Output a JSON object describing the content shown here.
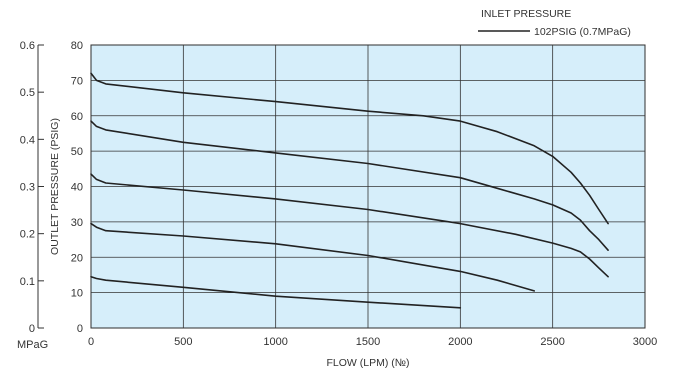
{
  "chart_data": {
    "type": "line",
    "xlabel": "FLOW (LPM) (№)",
    "ylabel": "OUTLET PRESSURE (PSIG)",
    "secondary_axis": {
      "unit": "MPaG",
      "ticks": [
        "0",
        "0.1",
        "0.2",
        "0.3",
        "0.4",
        "0.5",
        "0.6"
      ],
      "ylim": [
        0,
        0.6
      ]
    },
    "xlim": [
      0,
      3000
    ],
    "ylim": [
      0,
      80
    ],
    "x_ticks": [
      "0",
      "500",
      "1000",
      "1500",
      "2000",
      "2500",
      "3000"
    ],
    "y_ticks": [
      "0",
      "10",
      "20",
      "30",
      "40",
      "50",
      "60",
      "70",
      "80"
    ],
    "grid": true,
    "background_color": "#d6eefa",
    "line_color": "#222222",
    "legend": {
      "title": "INLET PRESSURE",
      "entries": [
        "102PSIG (0.7MPaG)"
      ],
      "position": "top-right"
    },
    "series": [
      {
        "points": [
          [
            0,
            72
          ],
          [
            30,
            70
          ],
          [
            80,
            69
          ],
          [
            500,
            66.5
          ],
          [
            1000,
            64
          ],
          [
            1500,
            61.3
          ],
          [
            1800,
            60
          ],
          [
            2000,
            58.5
          ],
          [
            2200,
            55.5
          ],
          [
            2400,
            51.5
          ],
          [
            2500,
            48.5
          ],
          [
            2600,
            44
          ],
          [
            2650,
            41
          ],
          [
            2700,
            37.5
          ],
          [
            2750,
            33.5
          ],
          [
            2800,
            29.5
          ]
        ]
      },
      {
        "points": [
          [
            0,
            58.5
          ],
          [
            30,
            57
          ],
          [
            80,
            56
          ],
          [
            500,
            52.5
          ],
          [
            1000,
            49.5
          ],
          [
            1500,
            46.5
          ],
          [
            2000,
            42.5
          ],
          [
            2200,
            39.5
          ],
          [
            2400,
            36.5
          ],
          [
            2500,
            34.8
          ],
          [
            2600,
            32.5
          ],
          [
            2650,
            30.5
          ],
          [
            2700,
            27.5
          ],
          [
            2750,
            25
          ],
          [
            2800,
            22
          ]
        ]
      },
      {
        "points": [
          [
            0,
            43.5
          ],
          [
            30,
            42
          ],
          [
            80,
            41
          ],
          [
            500,
            39
          ],
          [
            1000,
            36.5
          ],
          [
            1500,
            33.5
          ],
          [
            2000,
            29.5
          ],
          [
            2300,
            26.5
          ],
          [
            2500,
            24
          ],
          [
            2600,
            22.5
          ],
          [
            2650,
            21.5
          ],
          [
            2700,
            19.5
          ],
          [
            2750,
            17
          ],
          [
            2800,
            14.5
          ]
        ]
      },
      {
        "points": [
          [
            0,
            29.5
          ],
          [
            30,
            28.5
          ],
          [
            80,
            27.5
          ],
          [
            500,
            26
          ],
          [
            1000,
            23.8
          ],
          [
            1500,
            20.5
          ],
          [
            2000,
            16
          ],
          [
            2200,
            13.5
          ],
          [
            2400,
            10.5
          ]
        ]
      },
      {
        "points": [
          [
            0,
            14.5
          ],
          [
            30,
            14
          ],
          [
            80,
            13.5
          ],
          [
            500,
            11.5
          ],
          [
            1000,
            9
          ],
          [
            1500,
            7.3
          ],
          [
            2000,
            5.7
          ]
        ]
      }
    ]
  }
}
